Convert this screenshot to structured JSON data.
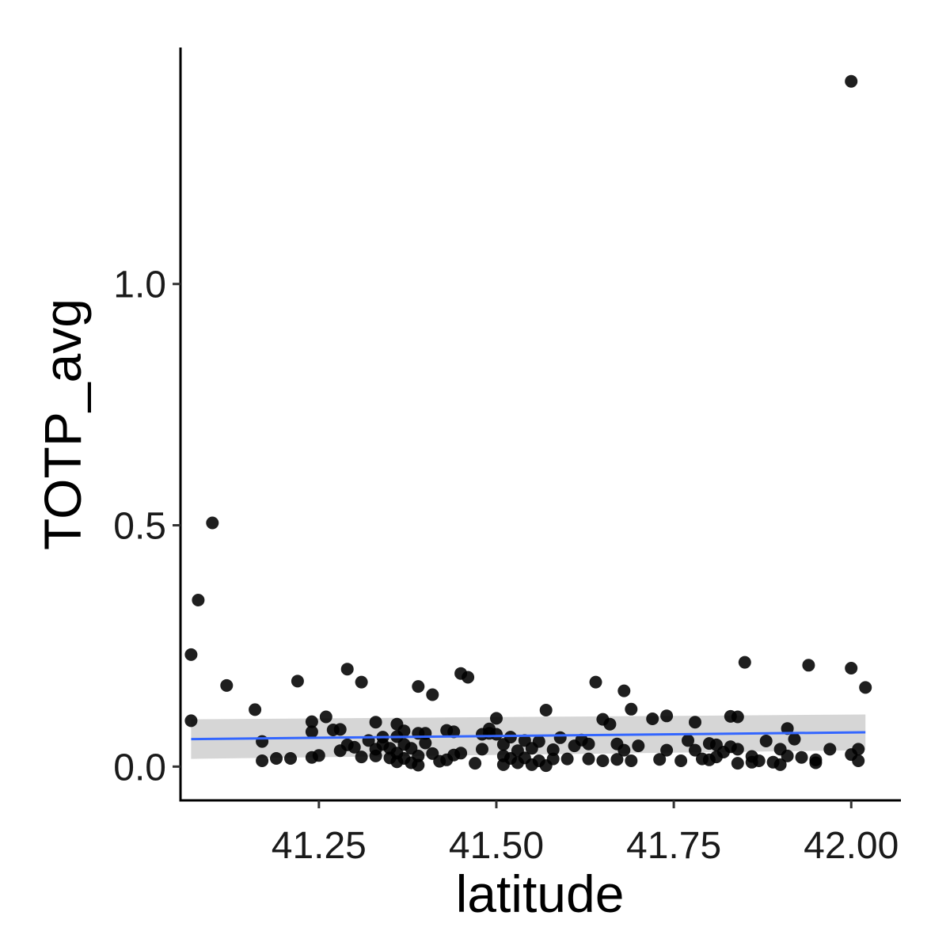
{
  "chart_data": {
    "type": "scatter",
    "title": "",
    "xlabel": "latitude",
    "ylabel": "TOTP_avg",
    "xlim": [
      41.055,
      42.07
    ],
    "ylim": [
      -0.07,
      1.49
    ],
    "x_ticks": [
      41.25,
      41.5,
      41.75,
      42.0
    ],
    "x_tick_labels": [
      "41.25",
      "41.50",
      "41.75",
      "42.00"
    ],
    "y_ticks": [
      0.0,
      0.5,
      1.0
    ],
    "y_tick_labels": [
      "0.0",
      "0.5",
      "1.0"
    ],
    "grid": false,
    "legend": "none",
    "point_color": "#000000",
    "trend": {
      "method": "linear",
      "color": "#3366ff",
      "band_color": "#cccccc",
      "x": [
        41.07,
        42.02
      ],
      "y": [
        0.057,
        0.071
      ],
      "ci_lower": [
        0.016,
        0.034
      ],
      "ci_upper": [
        0.098,
        0.108
      ]
    },
    "points": [
      [
        42.0,
        1.42
      ],
      [
        41.1,
        0.505
      ],
      [
        41.08,
        0.345
      ],
      [
        41.07,
        0.232
      ],
      [
        41.07,
        0.095
      ],
      [
        41.12,
        0.168
      ],
      [
        41.16,
        0.118
      ],
      [
        41.17,
        0.052
      ],
      [
        41.17,
        0.012
      ],
      [
        41.19,
        0.017
      ],
      [
        41.21,
        0.017
      ],
      [
        41.22,
        0.177
      ],
      [
        41.24,
        0.093
      ],
      [
        41.24,
        0.072
      ],
      [
        41.24,
        0.019
      ],
      [
        41.25,
        0.023
      ],
      [
        41.26,
        0.103
      ],
      [
        41.27,
        0.076
      ],
      [
        41.28,
        0.077
      ],
      [
        41.28,
        0.033
      ],
      [
        41.29,
        0.202
      ],
      [
        41.29,
        0.045
      ],
      [
        41.3,
        0.04
      ],
      [
        41.31,
        0.175
      ],
      [
        41.31,
        0.02
      ],
      [
        41.32,
        0.054
      ],
      [
        41.33,
        0.092
      ],
      [
        41.33,
        0.036
      ],
      [
        41.33,
        0.022
      ],
      [
        41.34,
        0.061
      ],
      [
        41.34,
        0.046
      ],
      [
        41.35,
        0.018
      ],
      [
        41.35,
        0.038
      ],
      [
        41.36,
        0.088
      ],
      [
        41.36,
        0.062
      ],
      [
        41.36,
        0.028
      ],
      [
        41.36,
        0.01
      ],
      [
        41.37,
        0.074
      ],
      [
        41.37,
        0.046
      ],
      [
        41.37,
        0.017
      ],
      [
        41.38,
        0.038
      ],
      [
        41.38,
        0.008
      ],
      [
        41.39,
        0.069
      ],
      [
        41.39,
        0.022
      ],
      [
        41.39,
        0.166
      ],
      [
        41.39,
        0.003
      ],
      [
        41.4,
        0.049
      ],
      [
        41.4,
        0.069
      ],
      [
        41.41,
        0.149
      ],
      [
        41.41,
        0.027
      ],
      [
        41.42,
        0.011
      ],
      [
        41.43,
        0.014
      ],
      [
        41.43,
        0.075
      ],
      [
        41.44,
        0.072
      ],
      [
        41.44,
        0.024
      ],
      [
        41.45,
        0.028
      ],
      [
        41.45,
        0.193
      ],
      [
        41.46,
        0.185
      ],
      [
        41.47,
        0.007
      ],
      [
        41.48,
        0.067
      ],
      [
        41.48,
        0.036
      ],
      [
        41.49,
        0.078
      ],
      [
        41.49,
        0.069
      ],
      [
        41.5,
        0.1
      ],
      [
        41.5,
        0.067
      ],
      [
        41.51,
        0.046
      ],
      [
        41.51,
        0.022
      ],
      [
        41.51,
        0.004
      ],
      [
        41.52,
        0.061
      ],
      [
        41.52,
        0.017
      ],
      [
        41.53,
        0.033
      ],
      [
        41.53,
        0.008
      ],
      [
        41.54,
        0.054
      ],
      [
        41.54,
        0.018
      ],
      [
        41.55,
        0.038
      ],
      [
        41.55,
        0.004
      ],
      [
        41.56,
        0.012
      ],
      [
        41.56,
        0.052
      ],
      [
        41.57,
        0.002
      ],
      [
        41.57,
        0.117
      ],
      [
        41.58,
        0.035
      ],
      [
        41.58,
        0.016
      ],
      [
        41.59,
        0.06
      ],
      [
        41.6,
        0.016
      ],
      [
        41.61,
        0.043
      ],
      [
        41.62,
        0.055
      ],
      [
        41.63,
        0.016
      ],
      [
        41.63,
        0.047
      ],
      [
        41.64,
        0.175
      ],
      [
        41.65,
        0.098
      ],
      [
        41.65,
        0.012
      ],
      [
        41.66,
        0.088
      ],
      [
        41.67,
        0.047
      ],
      [
        41.67,
        0.015
      ],
      [
        41.68,
        0.157
      ],
      [
        41.68,
        0.034
      ],
      [
        41.69,
        0.119
      ],
      [
        41.69,
        0.012
      ],
      [
        41.7,
        0.043
      ],
      [
        41.72,
        0.099
      ],
      [
        41.73,
        0.015
      ],
      [
        41.74,
        0.105
      ],
      [
        41.74,
        0.034
      ],
      [
        41.76,
        0.012
      ],
      [
        41.77,
        0.054
      ],
      [
        41.78,
        0.092
      ],
      [
        41.78,
        0.034
      ],
      [
        41.79,
        0.016
      ],
      [
        41.8,
        0.048
      ],
      [
        41.8,
        0.014
      ],
      [
        41.81,
        0.045
      ],
      [
        41.81,
        0.02
      ],
      [
        41.82,
        0.03
      ],
      [
        41.83,
        0.104
      ],
      [
        41.83,
        0.041
      ],
      [
        41.84,
        0.103
      ],
      [
        41.84,
        0.036
      ],
      [
        41.84,
        0.007
      ],
      [
        41.85,
        0.216
      ],
      [
        41.86,
        0.021
      ],
      [
        41.86,
        0.009
      ],
      [
        41.87,
        0.012
      ],
      [
        41.88,
        0.053
      ],
      [
        41.89,
        0.009
      ],
      [
        41.9,
        0.004
      ],
      [
        41.9,
        0.036
      ],
      [
        41.91,
        0.022
      ],
      [
        41.91,
        0.079
      ],
      [
        41.92,
        0.057
      ],
      [
        41.93,
        0.019
      ],
      [
        41.94,
        0.21
      ],
      [
        41.95,
        0.008
      ],
      [
        41.95,
        0.014
      ],
      [
        41.97,
        0.036
      ],
      [
        42.0,
        0.204
      ],
      [
        42.0,
        0.025
      ],
      [
        42.01,
        0.036
      ],
      [
        42.01,
        0.012
      ],
      [
        42.02,
        0.164
      ]
    ]
  }
}
